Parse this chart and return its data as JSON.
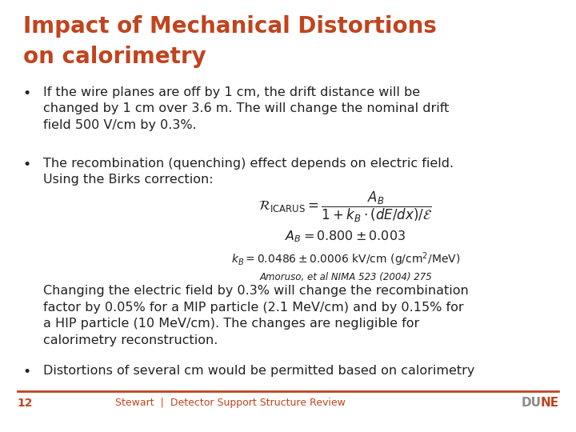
{
  "title_line1": "Impact of Mechanical Distortions",
  "title_line2": "on calorimetry",
  "title_color": "#C0441E",
  "title_fontsize": 20,
  "body_fontsize": 11.5,
  "body_color": "#222222",
  "footer_color": "#C0441E",
  "footer_text": "Stewart  |  Detector Support Structure Review",
  "footer_page": "12",
  "background_color": "#FFFFFF",
  "bullet1": "If the wire planes are off by 1 cm, the drift distance will be\nchanged by 1 cm over 3.6 m. The will change the nominal drift\nfield 500 V/cm by 0.3%.",
  "bullet2_intro": "The recombination (quenching) effect depends on electric field.\nUsing the Birks correction:",
  "formula_main": "$\\mathcal{R}_{\\mathrm{ICARUS}} = \\dfrac{A_B}{1 + k_B \\cdot (dE/dx)/\\mathcal{E}}$",
  "formula_AB": "$A_B = 0.800 \\pm 0.003$",
  "formula_kB": "$k_B = 0.0486 \\pm 0.0006\\ \\mathrm{kV/cm\\ (g/cm^2/MeV)}$",
  "formula_ref": "Amoruso, et al NIMA 523 (2004) 275",
  "bullet2_cont": "Changing the electric field by 0.3% will change the recombination\nfactor by 0.05% for a MIP particle (2.1 MeV/cm) and by 0.15% for\na HIP particle (10 MeV/cm). The changes are negligible for\ncalorimetry reconstruction.",
  "bullet3": "Distortions of several cm would be permitted based on calorimetry",
  "dune_gray": "#8B8B8B",
  "dune_orange": "#C0441E"
}
